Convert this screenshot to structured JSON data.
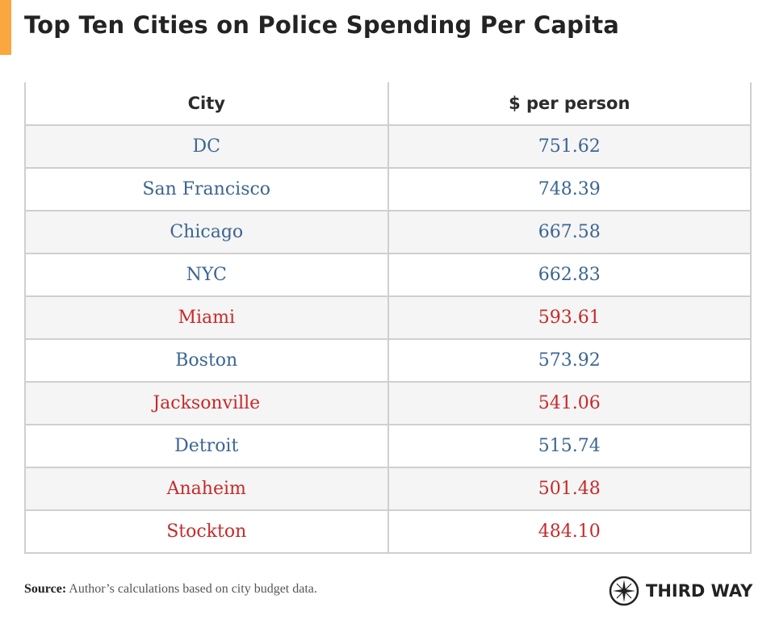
{
  "title": "Top Ten Cities on Police Spending Per Capita",
  "colors": {
    "accent": "#f9a73e",
    "default": "#3b6592",
    "highlight": "#c62a2a"
  },
  "chart_data": {
    "type": "table",
    "title": "Top Ten Cities on Police Spending Per Capita",
    "columns": [
      "City",
      "$ per person"
    ],
    "rows": [
      {
        "city": "DC",
        "value": "751.62",
        "highlight": false
      },
      {
        "city": "San Francisco",
        "value": "748.39",
        "highlight": false
      },
      {
        "city": "Chicago",
        "value": "667.58",
        "highlight": false
      },
      {
        "city": "NYC",
        "value": "662.83",
        "highlight": false
      },
      {
        "city": "Miami",
        "value": "593.61",
        "highlight": true
      },
      {
        "city": "Boston",
        "value": "573.92",
        "highlight": false
      },
      {
        "city": "Jacksonville",
        "value": "541.06",
        "highlight": true
      },
      {
        "city": "Detroit",
        "value": "515.74",
        "highlight": false
      },
      {
        "city": "Anaheim",
        "value": "501.48",
        "highlight": true
      },
      {
        "city": "Stockton",
        "value": "484.10",
        "highlight": true
      }
    ]
  },
  "source": {
    "label": "Source:",
    "text": " Author’s calculations based on city budget data."
  },
  "logo": {
    "text": "THIRD WAY",
    "icon": "compass-star-icon"
  }
}
